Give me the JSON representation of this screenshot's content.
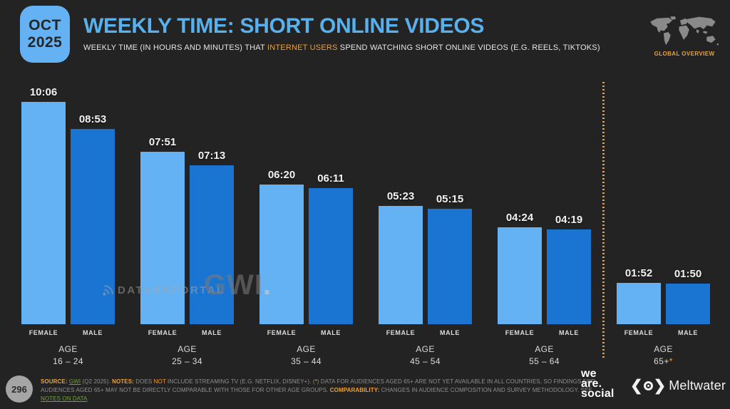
{
  "slide": {
    "date_badge": {
      "month": "OCT",
      "year": "2025"
    },
    "title": "WEEKLY TIME: SHORT ONLINE VIDEOS",
    "subtitle_segments": [
      {
        "text": "WEEKLY TIME (IN HOURS AND MINUTES) THAT ",
        "style": ""
      },
      {
        "text": "INTERNET USERS",
        "style": "orange"
      },
      {
        "text": " SPEND WATCHING SHORT ONLINE VIDEOS (E.G. REELS, TIKTOKS)",
        "style": ""
      }
    ],
    "scope_label": "GLOBAL OVERVIEW",
    "page_number": "296",
    "footnote_segments": [
      {
        "text": "SOURCE: ",
        "style": "orange-bold"
      },
      {
        "text": "GWI",
        "style": "green-link"
      },
      {
        "text": " (Q2 2025). ",
        "style": ""
      },
      {
        "text": "NOTES: ",
        "style": "orange-bold"
      },
      {
        "text": "DOES ",
        "style": ""
      },
      {
        "text": "NOT",
        "style": "orange"
      },
      {
        "text": " INCLUDE STREAMING TV (E.G. NETFLIX, DISNEY+). (",
        "style": ""
      },
      {
        "text": "*",
        "style": "orange"
      },
      {
        "text": ") DATA FOR AUDIENCES AGED 65+ ARE NOT YET AVAILABLE IN ALL COUNTRIES, SO FINDINGS FOR AUDIENCES AGED 65+ MAY NOT BE DIRECTLY COMPARABLE WITH THOSE FOR OTHER AGE GROUPS. ",
        "style": ""
      },
      {
        "text": "COMPARABILITY:",
        "style": "orange-bold"
      },
      {
        "text": " CHANGES IN AUDIENCE COMPOSITION AND SURVEY METHODOLOGY. SEE ",
        "style": ""
      },
      {
        "text": "NOTES ON DATA",
        "style": "green-link"
      },
      {
        "text": ".",
        "style": ""
      }
    ],
    "watermarks": {
      "datareportal": "DATAREPORTAL",
      "gwi": "GWI",
      "gwi_dot": "."
    },
    "logos": {
      "wearesocial_lines": [
        "we",
        "are.",
        "social"
      ],
      "meltwater": "Meltwater"
    }
  },
  "chart_data": {
    "type": "bar",
    "title": "WEEKLY TIME: SHORT ONLINE VIDEOS",
    "subtitle": "WEEKLY TIME (IN HOURS AND MINUTES) THAT INTERNET USERS SPEND WATCHING SHORT ONLINE VIDEOS (E.G. REELS, TIKTOKS)",
    "value_format": "hh:mm",
    "category_prefix": "AGE",
    "categories": [
      "16 – 24",
      "25 – 34",
      "35 – 44",
      "45 – 54",
      "55 – 64",
      "65+*"
    ],
    "series": [
      {
        "name": "FEMALE",
        "color": "#64B2F4",
        "values": [
          "10:06",
          "07:51",
          "06:20",
          "05:23",
          "04:24",
          "01:52"
        ]
      },
      {
        "name": "MALE",
        "color": "#1A75D2",
        "values": [
          "08:53",
          "07:13",
          "06:11",
          "05:15",
          "04:19",
          "01:50"
        ]
      }
    ],
    "ylim": [
      "00:00",
      "10:06"
    ],
    "grid": false,
    "legend_position": "below-bars",
    "divider_after_category_index": 4,
    "divider_color": "#F0A030"
  }
}
